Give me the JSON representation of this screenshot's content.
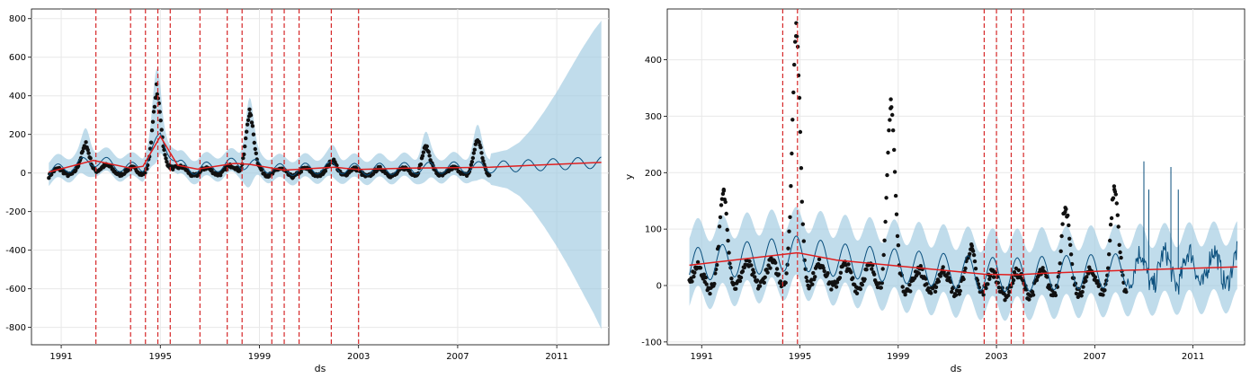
{
  "colors": {
    "band": "#9ecae1",
    "forecast_line": "#0a4f7d",
    "trend": "#e01f1f",
    "points": "#111111",
    "changepoints": "#d62728",
    "grid": "#e8e8e8"
  },
  "chart_data": [
    {
      "type": "line",
      "title": "",
      "xlabel": "ds",
      "ylabel": "",
      "xlim": [
        1989.8,
        2013.1
      ],
      "ylim": [
        -890,
        850
      ],
      "x_ticks": [
        1991,
        1995,
        1999,
        2003,
        2007,
        2011
      ],
      "y_ticks": [
        -800,
        -600,
        -400,
        -200,
        0,
        200,
        400,
        600,
        800
      ],
      "grid": true,
      "history_end": 2008.3,
      "series": {
        "trend": {
          "x": [
            1990.5,
            1992.3,
            1993.8,
            1994.3,
            1995.0,
            1995.7,
            1996.5,
            1998.0,
            1998.6,
            2000.0,
            2002.0,
            2003.0,
            2005.0,
            2008.3,
            2010.0,
            2012.8
          ],
          "y": [
            5,
            65,
            25,
            35,
            190,
            40,
            20,
            50,
            45,
            15,
            30,
            18,
            25,
            30,
            40,
            55
          ]
        },
        "band_upper": {
          "x": [
            2008.3,
            2009.0,
            2009.5,
            2010.0,
            2010.5,
            2011.0,
            2011.5,
            2012.0,
            2012.5,
            2012.8
          ],
          "y": [
            100,
            120,
            160,
            230,
            320,
            420,
            530,
            640,
            740,
            790
          ]
        },
        "band_lower": {
          "x": [
            2008.3,
            2009.0,
            2009.5,
            2010.0,
            2010.5,
            2011.0,
            2011.5,
            2012.0,
            2012.5,
            2012.8
          ],
          "y": [
            -60,
            -80,
            -120,
            -190,
            -280,
            -380,
            -490,
            -610,
            -730,
            -810
          ]
        },
        "peaks": [
          {
            "x": 1992.0,
            "y": 160
          },
          {
            "x": 1994.85,
            "y": 460
          },
          {
            "x": 1998.6,
            "y": 330
          },
          {
            "x": 2002.0,
            "y": 70
          },
          {
            "x": 2005.7,
            "y": 140
          },
          {
            "x": 2007.8,
            "y": 170
          }
        ]
      },
      "changepoints": [
        1992.4,
        1993.8,
        1994.4,
        1994.9,
        1995.4,
        1996.6,
        1997.7,
        1998.3,
        1999.5,
        2000.0,
        2000.6,
        2001.9,
        2003.0
      ]
    },
    {
      "type": "line",
      "title": "",
      "xlabel": "ds",
      "ylabel": "y",
      "xlim": [
        1989.6,
        2013.1
      ],
      "ylim": [
        -105,
        490
      ],
      "x_ticks": [
        1991,
        1995,
        1999,
        2003,
        2007,
        2011
      ],
      "y_ticks": [
        -100,
        0,
        100,
        200,
        300,
        400
      ],
      "grid": true,
      "history_end": 2008.3,
      "series": {
        "trend": {
          "x": [
            1990.5,
            1994.9,
            1996.5,
            2002.5,
            2003.8,
            2005.0,
            2008.3,
            2012.8
          ],
          "y": [
            36,
            58,
            45,
            20,
            19,
            22,
            27,
            33
          ]
        },
        "band_halfwidth": 60,
        "spikes_future": [
          {
            "x": 2009.0,
            "y": 220
          },
          {
            "x": 2009.2,
            "y": 170
          },
          {
            "x": 2010.1,
            "y": 210
          },
          {
            "x": 2010.4,
            "y": 170
          }
        ],
        "peaks": [
          {
            "x": 1991.9,
            "y": 170
          },
          {
            "x": 1994.85,
            "y": 465
          },
          {
            "x": 1998.7,
            "y": 330
          },
          {
            "x": 2002.0,
            "y": 70
          },
          {
            "x": 2005.8,
            "y": 138
          },
          {
            "x": 2007.8,
            "y": 170
          }
        ]
      },
      "changepoints": [
        1994.3,
        1994.9,
        2002.5,
        2003.0,
        2003.6,
        2004.1
      ]
    }
  ]
}
